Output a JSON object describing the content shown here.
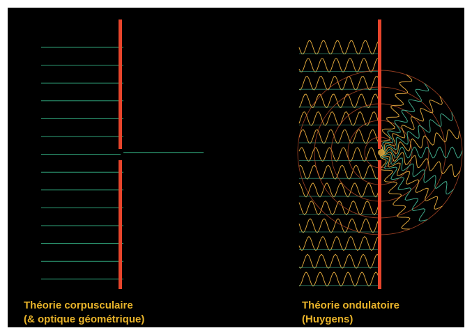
{
  "colors": {
    "background": "#000000",
    "barrier": "#e8452c",
    "ray": "#2fa37a",
    "wave_primary": "#d9a23a",
    "wave_secondary": "#3fa889",
    "wavefront_arc": "#c5522c",
    "caption": "#e8b32a"
  },
  "left_panel": {
    "title_line1": "Théorie corpusculaire",
    "title_line2": "(& optique géométrique)"
  },
  "right_panel": {
    "title_line1": "Théorie ondulatoire",
    "title_line2": "(Huygens)"
  }
}
